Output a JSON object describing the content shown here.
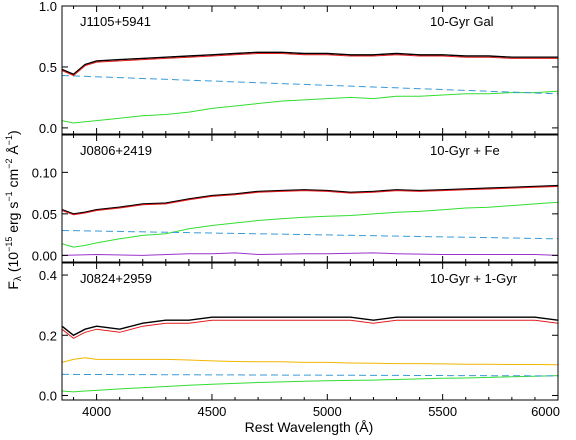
{
  "figure": {
    "xlabel": "Rest Wavelength (Å)",
    "ylabel_main": "F",
    "ylabel_sub": "λ",
    "ylabel_rest": " (10",
    "ylabel_exp1": "−15",
    "ylabel_unit1": " erg s",
    "ylabel_exp2": "−1",
    "ylabel_unit2": " cm",
    "ylabel_exp3": "−2",
    "ylabel_unit3": " Å",
    "ylabel_exp4": "−1",
    "ylabel_close": ")"
  },
  "colors": {
    "data": "#000000",
    "model": "#e41a1c",
    "powerlaw": "#3a9ad9",
    "gal10": "#33dd33",
    "iron": "#9933cc",
    "gal1": "#f2b600"
  },
  "chart_data": [
    {
      "type": "line",
      "object": "J1105+5941",
      "model_label": "10-Gyr Gal",
      "xlim": [
        3850,
        6000
      ],
      "ylim": [
        -0.05,
        1.0
      ],
      "x_ticks": [
        4000,
        4500,
        5000,
        5500,
        6000
      ],
      "y_ticks": [
        0.0,
        0.5,
        1.0
      ],
      "y_tick_labels": [
        "0.0",
        "0.5",
        "1.0"
      ],
      "series": [
        {
          "key": "data",
          "x": [
            3850,
            3900,
            3950,
            4000,
            4100,
            4200,
            4300,
            4400,
            4500,
            4600,
            4700,
            4800,
            4900,
            5000,
            5100,
            5200,
            5300,
            5400,
            5500,
            5600,
            5700,
            5800,
            5900,
            6000
          ],
          "y": [
            0.48,
            0.44,
            0.52,
            0.55,
            0.56,
            0.57,
            0.58,
            0.59,
            0.6,
            0.61,
            0.62,
            0.62,
            0.61,
            0.61,
            0.6,
            0.6,
            0.61,
            0.6,
            0.6,
            0.59,
            0.59,
            0.58,
            0.58,
            0.58
          ]
        },
        {
          "key": "model",
          "x": [
            3850,
            3900,
            3950,
            4000,
            4100,
            4200,
            4300,
            4400,
            4500,
            4600,
            4700,
            4800,
            4900,
            5000,
            5100,
            5200,
            5300,
            5400,
            5500,
            5600,
            5700,
            5800,
            5900,
            6000
          ],
          "y": [
            0.47,
            0.43,
            0.51,
            0.54,
            0.55,
            0.56,
            0.57,
            0.58,
            0.59,
            0.6,
            0.61,
            0.61,
            0.6,
            0.6,
            0.59,
            0.59,
            0.6,
            0.59,
            0.59,
            0.58,
            0.58,
            0.57,
            0.57,
            0.57
          ]
        },
        {
          "key": "powerlaw",
          "x": [
            3850,
            6000
          ],
          "y": [
            0.43,
            0.28
          ]
        },
        {
          "key": "gal10",
          "x": [
            3850,
            3900,
            3950,
            4000,
            4100,
            4200,
            4300,
            4400,
            4500,
            4600,
            4700,
            4800,
            4900,
            5000,
            5100,
            5200,
            5300,
            5400,
            5500,
            5600,
            5700,
            5800,
            5900,
            6000
          ],
          "y": [
            0.06,
            0.04,
            0.05,
            0.06,
            0.08,
            0.1,
            0.11,
            0.13,
            0.16,
            0.18,
            0.2,
            0.22,
            0.23,
            0.24,
            0.25,
            0.24,
            0.26,
            0.26,
            0.27,
            0.28,
            0.28,
            0.29,
            0.29,
            0.3
          ]
        }
      ]
    },
    {
      "type": "line",
      "object": "J0806+2419",
      "model_label": "10-Gyr + Fe",
      "xlim": [
        3850,
        6000
      ],
      "ylim": [
        -0.008,
        0.145
      ],
      "x_ticks": [
        4000,
        4500,
        5000,
        5500,
        6000
      ],
      "y_ticks": [
        0.0,
        0.05,
        0.1
      ],
      "y_tick_labels": [
        "0.00",
        "0.05",
        "0.10"
      ],
      "series": [
        {
          "key": "data",
          "x": [
            3850,
            3900,
            3950,
            4000,
            4100,
            4200,
            4300,
            4400,
            4500,
            4600,
            4700,
            4800,
            4900,
            5000,
            5100,
            5200,
            5300,
            5400,
            5500,
            5600,
            5700,
            5800,
            5900,
            6000
          ],
          "y": [
            0.055,
            0.05,
            0.052,
            0.055,
            0.058,
            0.062,
            0.063,
            0.068,
            0.072,
            0.074,
            0.077,
            0.078,
            0.079,
            0.078,
            0.076,
            0.077,
            0.079,
            0.078,
            0.079,
            0.08,
            0.081,
            0.082,
            0.083,
            0.084
          ]
        },
        {
          "key": "model",
          "x": [
            3850,
            3900,
            3950,
            4000,
            4100,
            4200,
            4300,
            4400,
            4500,
            4600,
            4700,
            4800,
            4900,
            5000,
            5100,
            5200,
            5300,
            5400,
            5500,
            5600,
            5700,
            5800,
            5900,
            6000
          ],
          "y": [
            0.054,
            0.049,
            0.051,
            0.054,
            0.057,
            0.061,
            0.062,
            0.067,
            0.071,
            0.073,
            0.076,
            0.077,
            0.078,
            0.077,
            0.075,
            0.076,
            0.078,
            0.077,
            0.078,
            0.079,
            0.08,
            0.081,
            0.082,
            0.083
          ]
        },
        {
          "key": "powerlaw",
          "x": [
            3850,
            6000
          ],
          "y": [
            0.03,
            0.02
          ]
        },
        {
          "key": "gal10",
          "x": [
            3850,
            3900,
            3950,
            4000,
            4100,
            4200,
            4300,
            4400,
            4500,
            4600,
            4700,
            4800,
            4900,
            5000,
            5100,
            5200,
            5300,
            5400,
            5500,
            5600,
            5700,
            5800,
            5900,
            6000
          ],
          "y": [
            0.014,
            0.01,
            0.012,
            0.015,
            0.02,
            0.024,
            0.026,
            0.032,
            0.036,
            0.039,
            0.042,
            0.044,
            0.046,
            0.047,
            0.048,
            0.05,
            0.052,
            0.053,
            0.055,
            0.057,
            0.058,
            0.06,
            0.062,
            0.064
          ]
        },
        {
          "key": "iron",
          "x": [
            3850,
            4000,
            4200,
            4400,
            4500,
            4600,
            4700,
            4900,
            5000,
            5200,
            5300,
            5500,
            5700,
            5900,
            6000
          ],
          "y": [
            0.0,
            0.001,
            0.0,
            0.002,
            0.002,
            0.003,
            0.001,
            0.002,
            0.002,
            0.003,
            0.002,
            0.001,
            0.001,
            0.001,
            0.0
          ]
        }
      ]
    },
    {
      "type": "line",
      "object": "J0824+2959",
      "model_label": "10-Gyr + 1-Gyr",
      "xlim": [
        3850,
        6000
      ],
      "ylim": [
        -0.015,
        0.44
      ],
      "x_ticks": [
        4000,
        4500,
        5000,
        5500,
        6000
      ],
      "y_ticks": [
        0.0,
        0.2,
        0.4
      ],
      "y_tick_labels": [
        "0.0",
        "0.2",
        "0.4"
      ],
      "series": [
        {
          "key": "data",
          "x": [
            3850,
            3900,
            3950,
            4000,
            4100,
            4200,
            4300,
            4400,
            4500,
            4600,
            4700,
            4800,
            4900,
            5000,
            5100,
            5200,
            5300,
            5400,
            5500,
            5600,
            5700,
            5800,
            5900,
            6000
          ],
          "y": [
            0.23,
            0.2,
            0.22,
            0.23,
            0.22,
            0.24,
            0.25,
            0.25,
            0.26,
            0.26,
            0.26,
            0.26,
            0.26,
            0.26,
            0.26,
            0.25,
            0.26,
            0.26,
            0.26,
            0.26,
            0.26,
            0.26,
            0.26,
            0.25
          ]
        },
        {
          "key": "model",
          "x": [
            3850,
            3900,
            3950,
            4000,
            4100,
            4200,
            4300,
            4400,
            4500,
            4600,
            4700,
            4800,
            4900,
            5000,
            5100,
            5200,
            5300,
            5400,
            5500,
            5600,
            5700,
            5800,
            5900,
            6000
          ],
          "y": [
            0.22,
            0.19,
            0.21,
            0.22,
            0.21,
            0.23,
            0.24,
            0.24,
            0.25,
            0.25,
            0.25,
            0.25,
            0.25,
            0.25,
            0.25,
            0.24,
            0.25,
            0.25,
            0.25,
            0.25,
            0.25,
            0.25,
            0.25,
            0.24
          ]
        },
        {
          "key": "gal1",
          "x": [
            3850,
            3900,
            3950,
            4000,
            4100,
            4200,
            4300,
            4400,
            4500,
            4600,
            4700,
            4800,
            4900,
            5000,
            5100,
            5200,
            5300,
            5400,
            5500,
            5600,
            5700,
            5800,
            5900,
            6000
          ],
          "y": [
            0.11,
            0.12,
            0.125,
            0.12,
            0.12,
            0.12,
            0.12,
            0.118,
            0.115,
            0.113,
            0.112,
            0.112,
            0.11,
            0.11,
            0.108,
            0.107,
            0.106,
            0.106,
            0.105,
            0.104,
            0.104,
            0.103,
            0.103,
            0.102
          ]
        },
        {
          "key": "powerlaw",
          "x": [
            3850,
            6000
          ],
          "y": [
            0.07,
            0.065
          ]
        },
        {
          "key": "gal10",
          "x": [
            3850,
            3900,
            3950,
            4000,
            4100,
            4200,
            4300,
            4400,
            4500,
            4600,
            4700,
            4800,
            4900,
            5000,
            5100,
            5200,
            5300,
            5400,
            5500,
            5600,
            5700,
            5800,
            5900,
            6000
          ],
          "y": [
            0.015,
            0.012,
            0.015,
            0.017,
            0.022,
            0.026,
            0.03,
            0.034,
            0.037,
            0.04,
            0.043,
            0.045,
            0.047,
            0.049,
            0.05,
            0.051,
            0.053,
            0.055,
            0.057,
            0.058,
            0.06,
            0.062,
            0.064,
            0.066
          ]
        }
      ]
    }
  ]
}
